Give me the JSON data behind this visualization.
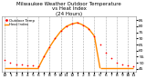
{
  "title": "Milwaukee Weather Outdoor Temperature\nvs Heat Index\n(24 Hours)",
  "bg_color": "#ffffff",
  "plot_bg_color": "#ffffff",
  "text_color": "#000000",
  "grid_color": "#aaaaaa",
  "temp_color": "#ff0000",
  "heat_color": "#ff8800",
  "hours": [
    0,
    1,
    2,
    3,
    4,
    5,
    6,
    7,
    8,
    9,
    10,
    11,
    12,
    13,
    14,
    15,
    16,
    17,
    18,
    19,
    20,
    21,
    22,
    23
  ],
  "temp": [
    52,
    50,
    49,
    49,
    48,
    48,
    47,
    55,
    63,
    70,
    76,
    80,
    82,
    83,
    81,
    78,
    72,
    65,
    58,
    54,
    50,
    49,
    48,
    47
  ],
  "heat_x_flat1": [
    0,
    1,
    2,
    3,
    4,
    5,
    6
  ],
  "heat_y_flat1": [
    46,
    46,
    46,
    46,
    46,
    46,
    46
  ],
  "heat_x_flat2": [
    17,
    18,
    19,
    20,
    21,
    22,
    23
  ],
  "heat_y_flat2": [
    46,
    46,
    46,
    46,
    46,
    46,
    46
  ],
  "heat_x_rise": [
    6,
    7,
    8,
    9,
    10,
    11,
    12,
    13,
    14,
    15,
    16,
    17
  ],
  "heat_y_rise": [
    46,
    55,
    63,
    70,
    76,
    80,
    82,
    83,
    81,
    78,
    72,
    46
  ],
  "ylim": [
    43,
    88
  ],
  "yticks": [
    45,
    50,
    55,
    60,
    65,
    70,
    75,
    80,
    85
  ],
  "ytick_labels": [
    "45",
    "50",
    "55",
    "60",
    "65",
    "70",
    "75",
    "80",
    "85"
  ],
  "xtick_positions": [
    0,
    1,
    2,
    3,
    4,
    5,
    6,
    7,
    8,
    9,
    10,
    11,
    12,
    13,
    14,
    15,
    16,
    17,
    18,
    19,
    20,
    21,
    22,
    23
  ],
  "xtick_labels": [
    "12",
    "1",
    "2",
    "3",
    "4",
    "5",
    "6",
    "7",
    "8",
    "9",
    "10",
    "11",
    "12",
    "1",
    "2",
    "3",
    "4",
    "5",
    "6",
    "7",
    "8",
    "9",
    "10",
    "11"
  ],
  "grid_positions": [
    0,
    2,
    4,
    6,
    8,
    10,
    12,
    14,
    16,
    18,
    20,
    22
  ],
  "legend_temp": "Outdoor Temp",
  "legend_heat": "Heat Index",
  "title_fontsize": 4.0,
  "tick_fontsize": 3.2,
  "legend_fontsize": 2.8
}
